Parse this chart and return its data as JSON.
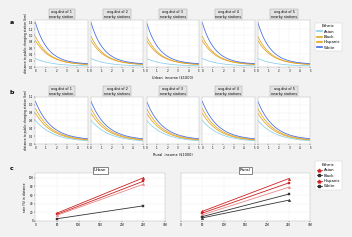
{
  "ethnicities": [
    "Asian",
    "Black",
    "Hispanic",
    "White"
  ],
  "colors": [
    "#87CEEB",
    "#DAA520",
    "#E8A020",
    "#4169E1"
  ],
  "panel_a_subtitles": [
    "avg.dist of 1\nnearby station",
    "avg.dist of 2\nnearby stations",
    "avg.dist of 3\nnearby stations",
    "avg.dist of 4\nnearby stations",
    "avg.dist of 5\nnearby stations"
  ],
  "panel_b_subtitles": [
    "avg.dist of 1\nnearby station",
    "avg.dist of 2\nnearby stations",
    "avg.dist of 3\nnearby stations",
    "avg.dist of 4\nnearby stations",
    "avg.dist of 5\nnearby stations"
  ],
  "urban_xlabel": "Urban  income ($1000)",
  "rural_xlabel": "Rural  income ($1000)",
  "ylabel_ab": "distance to public charging station (km)",
  "ylabel_c": "rate (%) in distance",
  "panel_c_titles": [
    "Urban",
    "Rural"
  ],
  "bg_color": "#f2f2f2",
  "plot_bg": "#ffffff",
  "grid_color": "#e8e8e8",
  "legend_title": "Ethnic",
  "red_color": "#CC2222",
  "dark_color": "#333333",
  "pink_color": "#E88888"
}
